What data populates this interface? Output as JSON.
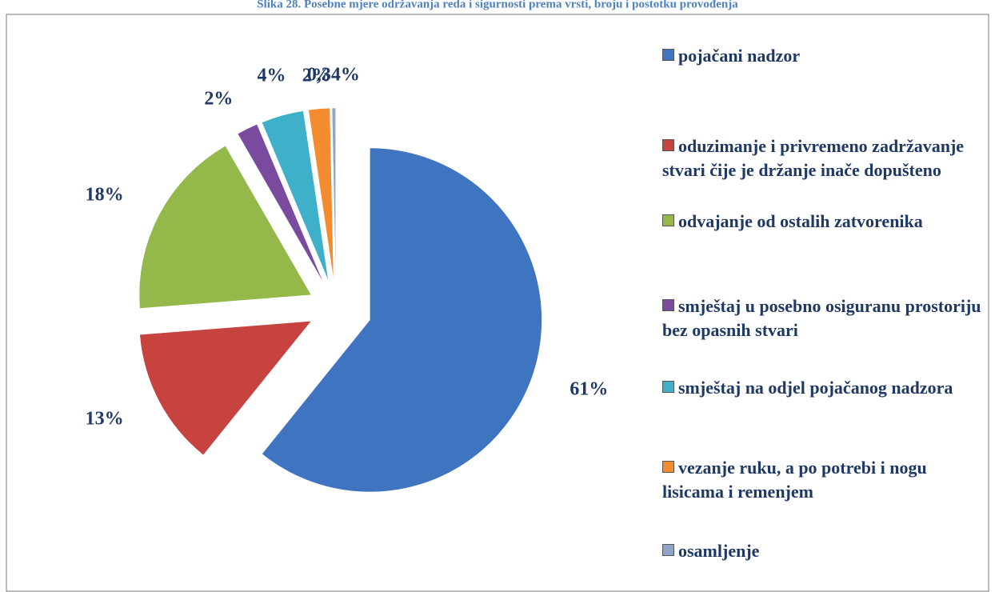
{
  "chart_data": {
    "type": "pie",
    "title": "Slika 28. Posebne mjere održavanja reda i sigurnosti prema vrsti, broju i postotku provođenja",
    "categories": [
      "pojačani nadzor",
      "oduzimanje i privremeno zadržavanje stvari čije je držanje inače dopušteno",
      "odvajanje od ostalih zatvorenika",
      "smještaj u posebno osiguranu prostoriju bez opasnih stvari",
      "smještaj na odjel pojačanog nadzora",
      "vezanje ruku, a po potrebi i nogu lisicama i remenjem",
      "osamljenje"
    ],
    "values": [
      61,
      13,
      18,
      2,
      4,
      2,
      0.34
    ],
    "value_labels": [
      "61%",
      "13%",
      "18%",
      "2%",
      "4%",
      "2%",
      "0,34%"
    ],
    "colors": [
      "#3f74c0",
      "#c64340",
      "#95b84b",
      "#7a4a9e",
      "#3fb0c9",
      "#f28c2e",
      "#8fa4c8"
    ],
    "legend": "right"
  }
}
